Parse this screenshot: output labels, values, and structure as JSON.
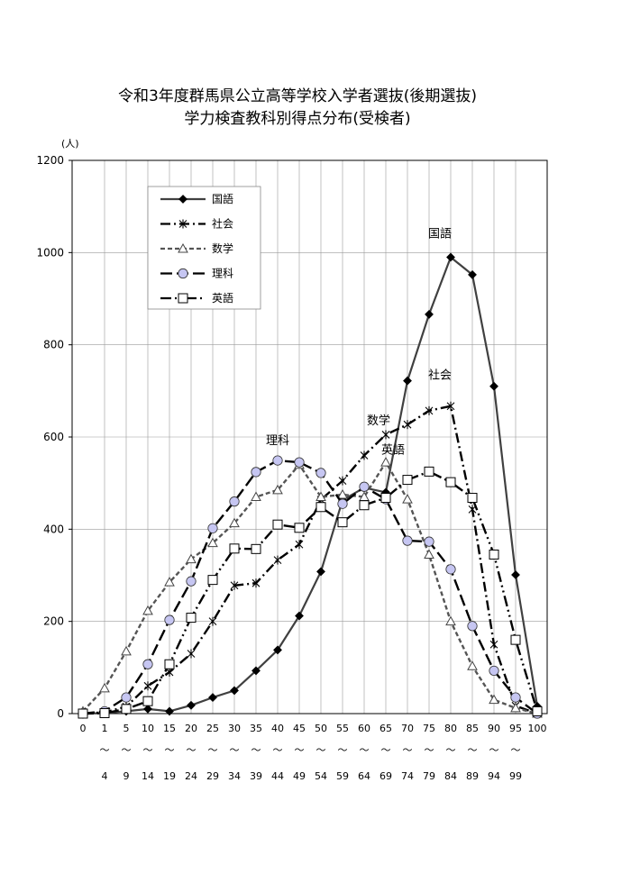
{
  "chart_data": {
    "type": "line",
    "title": "令和3年度群馬県公立高等学校入学者選抜(後期選抜)",
    "subtitle": "学力検査教科別得点分布(受検者)",
    "ylabel": "(人)",
    "ylim": [
      0,
      1200
    ],
    "yticks": [
      "0",
      "200",
      "400",
      "600",
      "800",
      "1000",
      "1200"
    ],
    "grid": "on",
    "legend_position": "top-left",
    "categories": [
      {
        "from": "0",
        "to": ""
      },
      {
        "from": "1",
        "to": "4"
      },
      {
        "from": "5",
        "to": "9"
      },
      {
        "from": "10",
        "to": "14"
      },
      {
        "from": "15",
        "to": "19"
      },
      {
        "from": "20",
        "to": "24"
      },
      {
        "from": "25",
        "to": "29"
      },
      {
        "from": "30",
        "to": "34"
      },
      {
        "from": "35",
        "to": "39"
      },
      {
        "from": "40",
        "to": "44"
      },
      {
        "from": "45",
        "to": "49"
      },
      {
        "from": "50",
        "to": "54"
      },
      {
        "from": "55",
        "to": "59"
      },
      {
        "from": "60",
        "to": "64"
      },
      {
        "from": "65",
        "to": "69"
      },
      {
        "from": "70",
        "to": "74"
      },
      {
        "from": "75",
        "to": "79"
      },
      {
        "from": "80",
        "to": "84"
      },
      {
        "from": "85",
        "to": "89"
      },
      {
        "from": "90",
        "to": "94"
      },
      {
        "from": "95",
        "to": "99"
      },
      {
        "from": "100",
        "to": ""
      }
    ],
    "range_mark": "～",
    "series": [
      {
        "name": "国語",
        "marker": "diamond",
        "line": "solid",
        "color": "#404040",
        "values": [
          0,
          1,
          5,
          10,
          5,
          18,
          35,
          50,
          93,
          138,
          212,
          308,
          463,
          490,
          480,
          722,
          866,
          990,
          952,
          710,
          301,
          16
        ]
      },
      {
        "name": "社会",
        "marker": "asterisk",
        "line": "dashdot",
        "color": "#000000",
        "values": [
          0,
          3,
          15,
          60,
          90,
          130,
          200,
          278,
          283,
          333,
          367,
          464,
          505,
          560,
          605,
          627,
          657,
          667,
          443,
          150,
          17,
          0
        ]
      },
      {
        "name": "数学",
        "marker": "triangle",
        "line": "dashed",
        "color": "#555555",
        "values": [
          5,
          55,
          135,
          223,
          285,
          335,
          370,
          413,
          470,
          485,
          540,
          470,
          475,
          470,
          545,
          465,
          345,
          200,
          103,
          30,
          12,
          0
        ]
      },
      {
        "name": "理科",
        "marker": "circle",
        "line": "longdash",
        "color": "#000000",
        "values": [
          0,
          5,
          35,
          107,
          203,
          287,
          402,
          460,
          524,
          549,
          545,
          522,
          455,
          492,
          465,
          375,
          373,
          313,
          190,
          93,
          35,
          0
        ]
      },
      {
        "name": "英語",
        "marker": "square",
        "line": "dashdotdot",
        "color": "#000000",
        "values": [
          0,
          1,
          10,
          27,
          107,
          208,
          290,
          358,
          357,
          410,
          403,
          448,
          415,
          452,
          468,
          507,
          525,
          502,
          468,
          345,
          160,
          5
        ]
      }
    ],
    "annotations": [
      {
        "text": "国語",
        "series": "国語",
        "index": 17
      },
      {
        "text": "社会",
        "series": "社会",
        "index": 17
      },
      {
        "text": "理科",
        "series": "理科",
        "index": 9
      },
      {
        "text": "数学",
        "series": "数学",
        "index": 14
      },
      {
        "text": "英語",
        "series": "英語",
        "index": 16
      }
    ]
  }
}
